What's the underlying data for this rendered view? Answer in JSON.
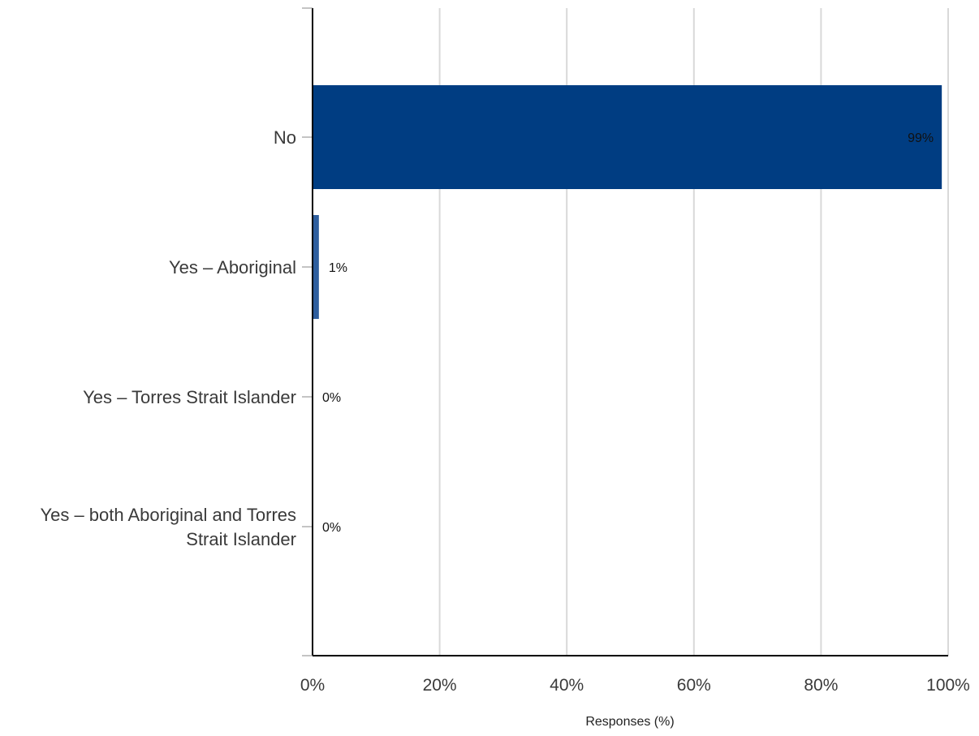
{
  "chart_data": {
    "type": "bar",
    "orientation": "horizontal",
    "categories": [
      [
        "No"
      ],
      [
        "Yes – Aboriginal"
      ],
      [
        "Yes – Torres Strait Islander"
      ],
      [
        "Yes – both Aboriginal and Torres",
        "Strait Islander"
      ]
    ],
    "values": [
      99,
      1,
      0,
      0
    ],
    "data_labels": [
      "99%",
      "1%",
      "0%",
      "0%"
    ],
    "xlabel": "Responses (%)",
    "ylabel": "",
    "xlim": [
      0,
      100
    ],
    "xticks": [
      0,
      20,
      40,
      60,
      80,
      100
    ],
    "xtick_labels": [
      "0%",
      "20%",
      "40%",
      "60%",
      "80%",
      "100%"
    ],
    "grid": "vertical",
    "legend": "none",
    "colors": {
      "bars": [
        "#003d82",
        "#2e5e9e",
        "#1f3f73",
        "#1f3f73"
      ],
      "grid": "#d9d9d9",
      "axis": "#000000"
    }
  }
}
